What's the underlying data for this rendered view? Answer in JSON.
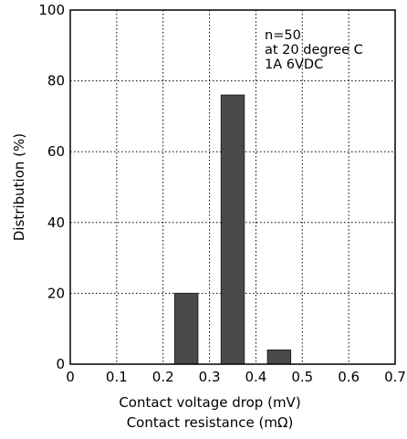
{
  "chart_data": {
    "type": "bar",
    "xlabel_lines": [
      "Contact voltage drop (mV)",
      "Contact resistance (mΩ)"
    ],
    "ylabel": "Distribution (%)",
    "xlim": [
      0,
      0.7
    ],
    "ylim": [
      0,
      100
    ],
    "x_ticks": [
      0,
      0.1,
      0.2,
      0.3,
      0.4,
      0.5,
      0.6,
      0.7
    ],
    "x_tick_labels": [
      "0",
      "0.1",
      "0.2",
      "0.3",
      "0.4",
      "0.5",
      "0.6",
      "0.7"
    ],
    "y_ticks": [
      0,
      20,
      40,
      60,
      80,
      100
    ],
    "y_tick_labels": [
      "0",
      "20",
      "40",
      "60",
      "80",
      "100"
    ],
    "bar_width": 0.05,
    "bars": [
      {
        "x": 0.25,
        "value": 20
      },
      {
        "x": 0.35,
        "value": 76
      },
      {
        "x": 0.45,
        "value": 4
      }
    ],
    "grid": true,
    "grid_style": "dotted",
    "bar_color": "#4a4a4a",
    "annotation_lines": [
      "n=50",
      "at 20 degree C",
      "1A 6VDC"
    ],
    "annotation_position": "top-right"
  }
}
